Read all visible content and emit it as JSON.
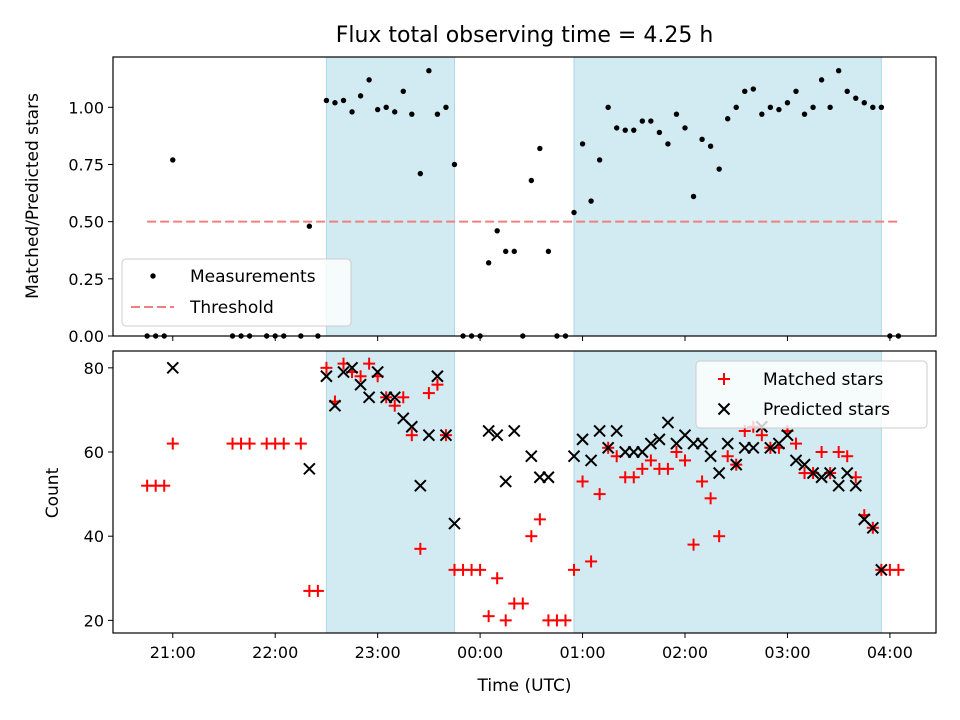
{
  "title": "Flux total observing time = 4.25 h",
  "colors": {
    "band": "#add8e6",
    "measurement": "#000000",
    "threshold": "#f08080",
    "matched": "#ff0000",
    "predicted": "#000000"
  },
  "chart_data": [
    {
      "type": "scatter",
      "ylabel": "Matched/Predicted stars",
      "xlabel": "",
      "xlim": [
        "20:25",
        "04:27"
      ],
      "ylim": [
        0,
        1.22
      ],
      "yticks": [
        "0.00",
        "0.25",
        "0.50",
        "0.75",
        "1.00"
      ],
      "yticks_values": [
        0,
        0.25,
        0.5,
        0.75,
        1.0
      ],
      "xticks_values": [
        "21:00",
        "22:00",
        "23:00",
        "00:00",
        "01:00",
        "02:00",
        "03:00",
        "04:00"
      ],
      "shaded_intervals": [
        [
          "22:30",
          "23:45"
        ],
        [
          "00:55",
          "03:55"
        ]
      ],
      "legend": {
        "placement": "lower-left",
        "entries": [
          "Measurements",
          "Threshold"
        ]
      },
      "threshold": {
        "name": "Threshold",
        "y": 0.5,
        "x_range": [
          "20:45",
          "04:05"
        ]
      },
      "series": [
        {
          "name": "Measurements",
          "marker": "dot",
          "points": [
            [
              "20:45",
              0
            ],
            [
              "20:50",
              0
            ],
            [
              "20:55",
              0
            ],
            [
              "21:00",
              0.77
            ],
            [
              "21:35",
              0
            ],
            [
              "21:40",
              0
            ],
            [
              "21:45",
              0
            ],
            [
              "21:55",
              0
            ],
            [
              "22:00",
              0
            ],
            [
              "22:05",
              0
            ],
            [
              "22:15",
              0
            ],
            [
              "22:20",
              0.48
            ],
            [
              "22:25",
              0
            ],
            [
              "22:30",
              1.03
            ],
            [
              "22:35",
              1.02
            ],
            [
              "22:40",
              1.03
            ],
            [
              "22:45",
              0.98
            ],
            [
              "22:50",
              1.05
            ],
            [
              "22:55",
              1.12
            ],
            [
              "23:00",
              0.99
            ],
            [
              "23:05",
              1.0
            ],
            [
              "23:10",
              0.98
            ],
            [
              "23:15",
              1.07
            ],
            [
              "23:20",
              0.97
            ],
            [
              "23:25",
              0.71
            ],
            [
              "23:30",
              1.16
            ],
            [
              "23:35",
              0.97
            ],
            [
              "23:40",
              1.0
            ],
            [
              "23:45",
              0.75
            ],
            [
              "23:50",
              0
            ],
            [
              "23:55",
              0
            ],
            [
              "00:00",
              0
            ],
            [
              "00:05",
              0.32
            ],
            [
              "00:10",
              0.46
            ],
            [
              "00:15",
              0.37
            ],
            [
              "00:20",
              0.37
            ],
            [
              "00:25",
              0
            ],
            [
              "00:30",
              0.68
            ],
            [
              "00:35",
              0.82
            ],
            [
              "00:40",
              0.37
            ],
            [
              "00:45",
              0
            ],
            [
              "00:50",
              0
            ],
            [
              "00:55",
              0.54
            ],
            [
              "01:00",
              0.84
            ],
            [
              "01:05",
              0.59
            ],
            [
              "01:10",
              0.77
            ],
            [
              "01:15",
              1.0
            ],
            [
              "01:20",
              0.91
            ],
            [
              "01:25",
              0.9
            ],
            [
              "01:30",
              0.9
            ],
            [
              "01:35",
              0.94
            ],
            [
              "01:40",
              0.94
            ],
            [
              "01:45",
              0.89
            ],
            [
              "01:50",
              0.84
            ],
            [
              "01:55",
              0.97
            ],
            [
              "02:00",
              0.91
            ],
            [
              "02:05",
              0.61
            ],
            [
              "02:10",
              0.86
            ],
            [
              "02:15",
              0.83
            ],
            [
              "02:20",
              0.73
            ],
            [
              "02:25",
              0.95
            ],
            [
              "02:30",
              1.0
            ],
            [
              "02:35",
              1.07
            ],
            [
              "02:40",
              1.08
            ],
            [
              "02:45",
              0.97
            ],
            [
              "02:50",
              1.0
            ],
            [
              "02:55",
              0.99
            ],
            [
              "03:00",
              1.02
            ],
            [
              "03:05",
              1.07
            ],
            [
              "03:10",
              0.97
            ],
            [
              "03:15",
              1.0
            ],
            [
              "03:20",
              1.12
            ],
            [
              "03:25",
              1.0
            ],
            [
              "03:30",
              1.16
            ],
            [
              "03:35",
              1.07
            ],
            [
              "03:40",
              1.04
            ],
            [
              "03:45",
              1.02
            ],
            [
              "03:50",
              1.0
            ],
            [
              "03:55",
              1.0
            ],
            [
              "04:00",
              0
            ],
            [
              "04:05",
              0
            ]
          ]
        }
      ]
    },
    {
      "type": "scatter",
      "ylabel": "Count",
      "xlabel": "Time (UTC)",
      "xlim": [
        "20:25",
        "04:27"
      ],
      "ylim": [
        17,
        84
      ],
      "yticks": [
        "20",
        "40",
        "60",
        "80"
      ],
      "yticks_values": [
        20,
        40,
        60,
        80
      ],
      "xticks": [
        "21:00",
        "22:00",
        "23:00",
        "00:00",
        "01:00",
        "02:00",
        "03:00",
        "04:00"
      ],
      "xticks_values": [
        "21:00",
        "22:00",
        "23:00",
        "00:00",
        "01:00",
        "02:00",
        "03:00",
        "04:00"
      ],
      "shaded_intervals": [
        [
          "22:30",
          "23:45"
        ],
        [
          "00:55",
          "03:55"
        ]
      ],
      "legend": {
        "placement": "upper-right",
        "entries": [
          "Matched stars",
          "Predicted stars"
        ]
      },
      "series": [
        {
          "name": "Matched stars",
          "marker": "plus",
          "points": [
            [
              "20:45",
              52
            ],
            [
              "20:50",
              52
            ],
            [
              "20:55",
              52
            ],
            [
              "21:00",
              62
            ],
            [
              "21:35",
              62
            ],
            [
              "21:40",
              62
            ],
            [
              "21:45",
              62
            ],
            [
              "21:55",
              62
            ],
            [
              "22:00",
              62
            ],
            [
              "22:05",
              62
            ],
            [
              "22:15",
              62
            ],
            [
              "22:20",
              27
            ],
            [
              "22:25",
              27
            ],
            [
              "22:30",
              80
            ],
            [
              "22:35",
              72
            ],
            [
              "22:40",
              81
            ],
            [
              "22:45",
              79
            ],
            [
              "22:50",
              78
            ],
            [
              "22:55",
              81
            ],
            [
              "23:00",
              78
            ],
            [
              "23:05",
              73
            ],
            [
              "23:10",
              71
            ],
            [
              "23:15",
              73
            ],
            [
              "23:20",
              64
            ],
            [
              "23:25",
              37
            ],
            [
              "23:30",
              74
            ],
            [
              "23:35",
              76
            ],
            [
              "23:40",
              64
            ],
            [
              "23:45",
              32
            ],
            [
              "23:50",
              32
            ],
            [
              "23:55",
              32
            ],
            [
              "00:00",
              32
            ],
            [
              "00:05",
              21
            ],
            [
              "00:10",
              30
            ],
            [
              "00:15",
              20
            ],
            [
              "00:20",
              24
            ],
            [
              "00:25",
              24
            ],
            [
              "00:30",
              40
            ],
            [
              "00:35",
              44
            ],
            [
              "00:40",
              20
            ],
            [
              "00:45",
              20
            ],
            [
              "00:50",
              20
            ],
            [
              "00:55",
              32
            ],
            [
              "01:00",
              53
            ],
            [
              "01:05",
              34
            ],
            [
              "01:10",
              50
            ],
            [
              "01:15",
              61
            ],
            [
              "01:20",
              59
            ],
            [
              "01:25",
              54
            ],
            [
              "01:30",
              54
            ],
            [
              "01:35",
              56
            ],
            [
              "01:40",
              58
            ],
            [
              "01:45",
              56
            ],
            [
              "01:50",
              56
            ],
            [
              "01:55",
              60
            ],
            [
              "02:00",
              58
            ],
            [
              "02:05",
              38
            ],
            [
              "02:10",
              53
            ],
            [
              "02:15",
              49
            ],
            [
              "02:20",
              40
            ],
            [
              "02:25",
              59
            ],
            [
              "02:30",
              57
            ],
            [
              "02:35",
              65
            ],
            [
              "02:40",
              66
            ],
            [
              "02:45",
              64
            ],
            [
              "02:50",
              61
            ],
            [
              "02:55",
              61
            ],
            [
              "03:00",
              65
            ],
            [
              "03:05",
              62
            ],
            [
              "03:10",
              55
            ],
            [
              "03:15",
              55
            ],
            [
              "03:20",
              60
            ],
            [
              "03:25",
              55
            ],
            [
              "03:30",
              60
            ],
            [
              "03:35",
              59
            ],
            [
              "03:40",
              54
            ],
            [
              "03:45",
              45
            ],
            [
              "03:50",
              42
            ],
            [
              "03:55",
              32
            ],
            [
              "04:00",
              32
            ],
            [
              "04:05",
              32
            ]
          ]
        },
        {
          "name": "Predicted stars",
          "marker": "x",
          "points": [
            [
              "21:00",
              80
            ],
            [
              "22:20",
              56
            ],
            [
              "22:30",
              78
            ],
            [
              "22:35",
              71
            ],
            [
              "22:40",
              79
            ],
            [
              "22:45",
              80
            ],
            [
              "22:50",
              76
            ],
            [
              "22:55",
              73
            ],
            [
              "23:00",
              79
            ],
            [
              "23:05",
              73
            ],
            [
              "23:10",
              73
            ],
            [
              "23:15",
              68
            ],
            [
              "23:20",
              66
            ],
            [
              "23:25",
              52
            ],
            [
              "23:30",
              64
            ],
            [
              "23:35",
              78
            ],
            [
              "23:40",
              64
            ],
            [
              "23:45",
              43
            ],
            [
              "00:05",
              65
            ],
            [
              "00:10",
              64
            ],
            [
              "00:15",
              53
            ],
            [
              "00:20",
              65
            ],
            [
              "00:30",
              59
            ],
            [
              "00:35",
              54
            ],
            [
              "00:40",
              54
            ],
            [
              "00:55",
              59
            ],
            [
              "01:00",
              63
            ],
            [
              "01:05",
              58
            ],
            [
              "01:10",
              65
            ],
            [
              "01:15",
              61
            ],
            [
              "01:20",
              65
            ],
            [
              "01:25",
              60
            ],
            [
              "01:30",
              60
            ],
            [
              "01:35",
              60
            ],
            [
              "01:40",
              62
            ],
            [
              "01:45",
              63
            ],
            [
              "01:50",
              67
            ],
            [
              "01:55",
              62
            ],
            [
              "02:00",
              64
            ],
            [
              "02:05",
              62
            ],
            [
              "02:10",
              62
            ],
            [
              "02:15",
              59
            ],
            [
              "02:20",
              55
            ],
            [
              "02:25",
              62
            ],
            [
              "02:30",
              57
            ],
            [
              "02:35",
              61
            ],
            [
              "02:40",
              61
            ],
            [
              "02:45",
              66
            ],
            [
              "02:50",
              61
            ],
            [
              "02:55",
              62
            ],
            [
              "03:00",
              64
            ],
            [
              "03:05",
              58
            ],
            [
              "03:10",
              57
            ],
            [
              "03:15",
              55
            ],
            [
              "03:20",
              54
            ],
            [
              "03:25",
              55
            ],
            [
              "03:30",
              52
            ],
            [
              "03:35",
              55
            ],
            [
              "03:40",
              52
            ],
            [
              "03:45",
              44
            ],
            [
              "03:50",
              42
            ],
            [
              "03:55",
              32
            ]
          ]
        }
      ]
    }
  ]
}
